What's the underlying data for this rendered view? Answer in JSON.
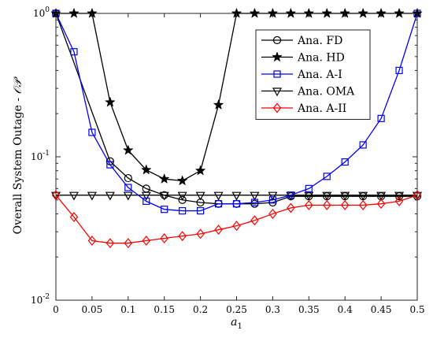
{
  "chart_data": {
    "type": "line",
    "xlabel": "a",
    "xlabel_sub": "1",
    "ylabel": "Overall System Outage - ",
    "ylabel_math": "𝒪𝒫",
    "xscale": "linear",
    "yscale": "log",
    "xlim": [
      0,
      0.5
    ],
    "ylim": [
      0.01,
      1
    ],
    "xticks": [
      0,
      0.05,
      0.1,
      0.15,
      0.2,
      0.25,
      0.3,
      0.35,
      0.4,
      0.45,
      0.5
    ],
    "xtick_labels": [
      "0",
      "0.05",
      "0.1",
      "0.15",
      "0.2",
      "0.25",
      "0.3",
      "0.35",
      "0.4",
      "0.45",
      "0.5"
    ],
    "yticks": [
      {
        "value": 1,
        "base": "10",
        "exp": "0"
      },
      {
        "value": 0.1,
        "base": "10",
        "exp": "-1"
      },
      {
        "value": 0.01,
        "base": "10",
        "exp": "-2"
      }
    ],
    "grid": false,
    "legend_position": "top-right",
    "series": [
      {
        "name": "Ana. FD",
        "marker": "circle",
        "color": "#000000",
        "x": [
          0,
          0.075,
          0.1,
          0.125,
          0.15,
          0.175,
          0.2,
          0.225,
          0.25,
          0.275,
          0.3,
          0.325,
          0.35,
          0.375,
          0.4,
          0.425,
          0.45,
          0.475,
          0.5
        ],
        "y": [
          1,
          0.093,
          0.071,
          0.06,
          0.054,
          0.05,
          0.048,
          0.047,
          0.047,
          0.047,
          0.048,
          0.053,
          0.053,
          0.053,
          0.053,
          0.053,
          0.053,
          0.053,
          0.053
        ]
      },
      {
        "name": "Ana. HD",
        "marker": "star",
        "color": "#000000",
        "x": [
          0,
          0.025,
          0.05,
          0.075,
          0.1,
          0.125,
          0.15,
          0.175,
          0.2,
          0.225,
          0.25,
          0.275,
          0.3,
          0.325,
          0.35,
          0.375,
          0.4,
          0.425,
          0.45,
          0.475,
          0.5
        ],
        "y": [
          1,
          1,
          1,
          0.24,
          0.111,
          0.081,
          0.07,
          0.068,
          0.08,
          0.23,
          1,
          1,
          1,
          1,
          1,
          1,
          1,
          1,
          1,
          1,
          1
        ]
      },
      {
        "name": "Ana. A-I",
        "marker": "square",
        "color": "#0000ff",
        "x": [
          0,
          0.025,
          0.05,
          0.075,
          0.1,
          0.125,
          0.15,
          0.175,
          0.2,
          0.225,
          0.25,
          0.275,
          0.3,
          0.325,
          0.35,
          0.375,
          0.4,
          0.425,
          0.45,
          0.475,
          0.5
        ],
        "y": [
          1,
          0.54,
          0.148,
          0.088,
          0.061,
          0.049,
          0.043,
          0.042,
          0.042,
          0.047,
          0.047,
          0.048,
          0.05,
          0.054,
          0.06,
          0.073,
          0.092,
          0.121,
          0.185,
          0.4,
          1
        ]
      },
      {
        "name": "Ana. OMA",
        "marker": "triangle-down",
        "color": "#000000",
        "x": [
          0,
          0.025,
          0.05,
          0.075,
          0.1,
          0.125,
          0.15,
          0.175,
          0.2,
          0.225,
          0.25,
          0.275,
          0.3,
          0.325,
          0.35,
          0.375,
          0.4,
          0.425,
          0.45,
          0.475,
          0.5
        ],
        "y": [
          0.054,
          0.054,
          0.054,
          0.054,
          0.054,
          0.054,
          0.054,
          0.054,
          0.054,
          0.054,
          0.054,
          0.054,
          0.054,
          0.054,
          0.054,
          0.054,
          0.054,
          0.054,
          0.054,
          0.054,
          0.054
        ]
      },
      {
        "name": "Ana. A-II",
        "marker": "diamond",
        "color": "#ff0000",
        "x": [
          0,
          0.025,
          0.05,
          0.075,
          0.1,
          0.125,
          0.15,
          0.175,
          0.2,
          0.225,
          0.25,
          0.275,
          0.3,
          0.325,
          0.35,
          0.375,
          0.4,
          0.425,
          0.45,
          0.475,
          0.5
        ],
        "y": [
          0.054,
          0.038,
          0.026,
          0.025,
          0.025,
          0.026,
          0.027,
          0.028,
          0.029,
          0.031,
          0.033,
          0.036,
          0.04,
          0.044,
          0.046,
          0.046,
          0.046,
          0.046,
          0.047,
          0.049,
          0.054
        ]
      }
    ]
  }
}
